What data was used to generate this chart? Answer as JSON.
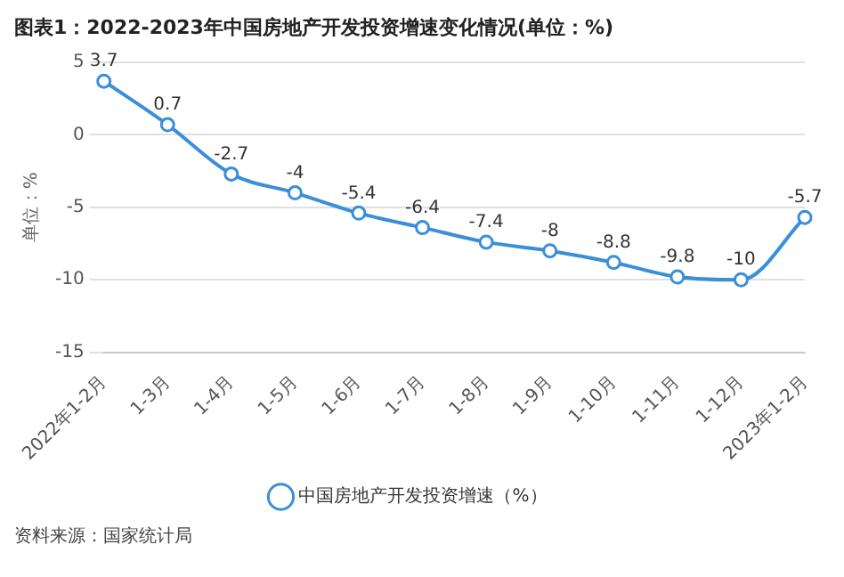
{
  "chart_data": {
    "type": "line",
    "title": "图表1：2022-2023年中国房地产开发投资增速变化情况(单位：%)",
    "ylabel": "单位：%",
    "categories": [
      "2022年1-2月",
      "1-3月",
      "1-4月",
      "1-5月",
      "1-6月",
      "1-7月",
      "1-8月",
      "1-9月",
      "1-10月",
      "1-11月",
      "1-12月",
      "2023年1-2月"
    ],
    "series": [
      {
        "name": "中国房地产开发投资增速（%）",
        "color": "#3a8fd9",
        "values": [
          3.7,
          0.7,
          -2.7,
          -4,
          -5.4,
          -6.4,
          -7.4,
          -8,
          -8.8,
          -9.8,
          -10,
          -5.7
        ]
      }
    ],
    "ylim": [
      -15,
      5
    ],
    "yticks": [
      -15,
      -10,
      -5,
      0,
      5
    ],
    "grid": "y",
    "legend": "bottom",
    "marker": "circle",
    "data_labels": true,
    "annotations": [
      "资料来源：国家统计局"
    ]
  }
}
